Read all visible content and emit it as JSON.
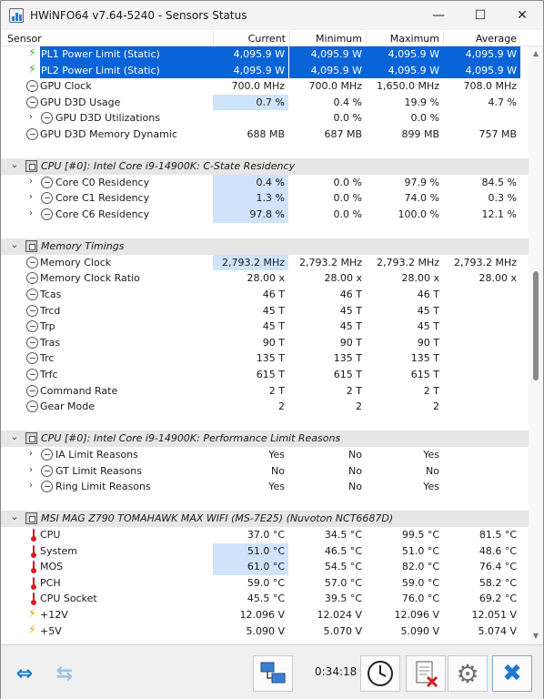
{
  "window": {
    "title": "HWiNFO64 v7.64-5240 - Sensors Status",
    "minimize": "—",
    "maximize": "☐",
    "close": "✕"
  },
  "columns": {
    "sensor": "Sensor",
    "current": "Current",
    "minimum": "Minimum",
    "maximum": "Maximum",
    "average": "Average"
  },
  "rows": [
    {
      "label": "PL1 Power Limit (Static)",
      "current": "4,095.9 W",
      "minimum": "4,095.9 W",
      "maximum": "4,095.9 W",
      "average": "4,095.9 W",
      "icon": "bolt-green-icon"
    },
    {
      "label": "PL2 Power Limit (Static)",
      "current": "4,095.9 W",
      "minimum": "4,095.9 W",
      "maximum": "4,095.9 W",
      "average": "4,095.9 W",
      "icon": "bolt-green-icon"
    },
    {
      "label": "GPU Clock",
      "current": "700.0 MHz",
      "minimum": "700.0 MHz",
      "maximum": "1,650.0 MHz",
      "average": "708.0 MHz",
      "icon": "clock-icon"
    },
    {
      "label": "GPU D3D Usage",
      "current": "0.7 %",
      "minimum": "0.4 %",
      "maximum": "19.9 %",
      "average": "4.7 %",
      "icon": "clock-icon"
    },
    {
      "label": "GPU D3D Utilizations",
      "current": "",
      "minimum": "0.0 %",
      "maximum": "0.0 %",
      "average": "",
      "icon": "clock-icon"
    },
    {
      "label": "GPU D3D Memory Dynamic",
      "current": "688 MB",
      "minimum": "687 MB",
      "maximum": "899 MB",
      "average": "757 MB",
      "icon": "clock-icon"
    },
    {
      "label": "CPU [#0]: Intel Core i9-14900K: C-State Residency",
      "group": true
    },
    {
      "label": "Core C0 Residency",
      "current": "0.4 %",
      "minimum": "0.0 %",
      "maximum": "97.9 %",
      "average": "84.5 %",
      "icon": "clock-icon"
    },
    {
      "label": "Core C1 Residency",
      "current": "1.3 %",
      "minimum": "0.0 %",
      "maximum": "74.0 %",
      "average": "0.3 %",
      "icon": "clock-icon"
    },
    {
      "label": "Core C6 Residency",
      "current": "97.8 %",
      "minimum": "0.0 %",
      "maximum": "100.0 %",
      "average": "12.1 %",
      "icon": "clock-icon"
    },
    {
      "label": "Memory Timings",
      "group": true
    },
    {
      "label": "Memory Clock",
      "current": "2,793.2 MHz",
      "minimum": "2,793.2 MHz",
      "maximum": "2,793.2 MHz",
      "average": "2,793.2 MHz",
      "icon": "clock-icon"
    },
    {
      "label": "Memory Clock Ratio",
      "current": "28.00 x",
      "minimum": "28.00 x",
      "maximum": "28.00 x",
      "average": "28.00 x",
      "icon": "clock-icon"
    },
    {
      "label": "Tcas",
      "current": "46 T",
      "minimum": "46 T",
      "maximum": "46 T",
      "average": "",
      "icon": "clock-icon"
    },
    {
      "label": "Trcd",
      "current": "45 T",
      "minimum": "45 T",
      "maximum": "45 T",
      "average": "",
      "icon": "clock-icon"
    },
    {
      "label": "Trp",
      "current": "45 T",
      "minimum": "45 T",
      "maximum": "45 T",
      "average": "",
      "icon": "clock-icon"
    },
    {
      "label": "Tras",
      "current": "90 T",
      "minimum": "90 T",
      "maximum": "90 T",
      "average": "",
      "icon": "clock-icon"
    },
    {
      "label": "Trc",
      "current": "135 T",
      "minimum": "135 T",
      "maximum": "135 T",
      "average": "",
      "icon": "clock-icon"
    },
    {
      "label": "Trfc",
      "current": "615 T",
      "minimum": "615 T",
      "maximum": "615 T",
      "average": "",
      "icon": "clock-icon"
    },
    {
      "label": "Command Rate",
      "current": "2 T",
      "minimum": "2 T",
      "maximum": "2 T",
      "average": "",
      "icon": "clock-icon"
    },
    {
      "label": "Gear Mode",
      "current": "2",
      "minimum": "2",
      "maximum": "2",
      "average": "",
      "icon": "clock-icon"
    },
    {
      "label": "CPU [#0]: Intel Core i9-14900K: Performance Limit Reasons",
      "group": true
    },
    {
      "label": "IA Limit Reasons",
      "current": "Yes",
      "minimum": "No",
      "maximum": "Yes",
      "average": "",
      "icon": "clock-icon"
    },
    {
      "label": "GT Limit Reasons",
      "current": "No",
      "minimum": "No",
      "maximum": "No",
      "average": "",
      "icon": "clock-icon"
    },
    {
      "label": "Ring Limit Reasons",
      "current": "Yes",
      "minimum": "No",
      "maximum": "Yes",
      "average": "",
      "icon": "clock-icon"
    },
    {
      "label": "MSI MAG Z790 TOMAHAWK MAX WIFI (MS-7E25) (Nuvoton NCT6687D)",
      "group": true
    },
    {
      "label": "CPU",
      "current": "37.0 °C",
      "minimum": "34.5 °C",
      "maximum": "99.5 °C",
      "average": "81.5 °C",
      "icon": "thermometer-icon"
    },
    {
      "label": "System",
      "current": "51.0 °C",
      "minimum": "46.5 °C",
      "maximum": "51.0 °C",
      "average": "48.6 °C",
      "icon": "thermometer-icon"
    },
    {
      "label": "MOS",
      "current": "61.0 °C",
      "minimum": "54.5 °C",
      "maximum": "82.0 °C",
      "average": "76.4 °C",
      "icon": "thermometer-icon"
    },
    {
      "label": "PCH",
      "current": "59.0 °C",
      "minimum": "57.0 °C",
      "maximum": "59.0 °C",
      "average": "58.2 °C",
      "icon": "thermometer-icon"
    },
    {
      "label": "CPU Socket",
      "current": "45.5 °C",
      "minimum": "39.5 °C",
      "maximum": "76.0 °C",
      "average": "69.2 °C",
      "icon": "thermometer-icon"
    },
    {
      "label": "+12V",
      "current": "12.096 V",
      "minimum": "12.024 V",
      "maximum": "12.096 V",
      "average": "12.051 V",
      "icon": "bolt-icon"
    },
    {
      "label": "+5V",
      "current": "5.090 V",
      "minimum": "5.070 V",
      "maximum": "5.090 V",
      "average": "5.074 V",
      "icon": "bolt-icon"
    }
  ],
  "toolbar": {
    "elapsed_time": "0:34:18"
  }
}
